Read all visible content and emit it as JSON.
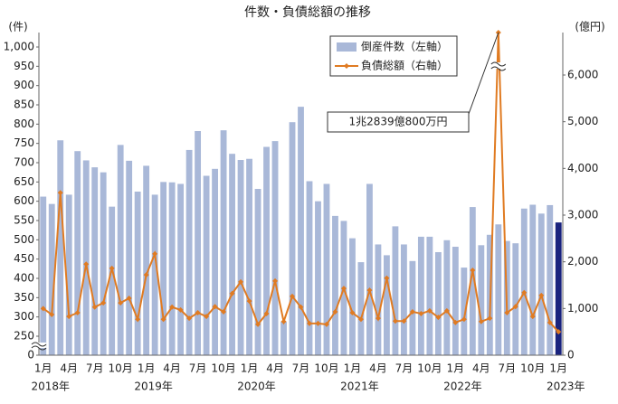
{
  "chart_data": {
    "type": "bar-line",
    "title": "件数・負債総額の推移",
    "y_unit": "(件)",
    "y2_unit": "(億円)",
    "categories": [
      "1月",
      null,
      null,
      "4月",
      null,
      null,
      "7月",
      null,
      null,
      "10月",
      null,
      null,
      "1月",
      null,
      null,
      "4月",
      null,
      null,
      "7月",
      null,
      null,
      "10月",
      null,
      null,
      "1月",
      null,
      null,
      "4月",
      null,
      null,
      "7月",
      null,
      null,
      "10月",
      null,
      null,
      "1月",
      null,
      null,
      "4月",
      null,
      null,
      "7月",
      null,
      null,
      "10月",
      null,
      null,
      "1月",
      null,
      null,
      "4月",
      null,
      null,
      "7月",
      null,
      null,
      "10月",
      null,
      null,
      "1月"
    ],
    "years": [
      "2018年",
      "2019年",
      "2020年",
      "2021年",
      "2022年",
      "2023年"
    ],
    "series": [
      {
        "name": "倒産件数（左軸）",
        "color": "#a9b8d8",
        "highlight_color": "#1a237e",
        "kind": "bar",
        "values": [
          612,
          593,
          758,
          617,
          730,
          706,
          688,
          675,
          586,
          746,
          705,
          625,
          692,
          617,
          650,
          649,
          645,
          733,
          782,
          666,
          684,
          784,
          723,
          707,
          710,
          632,
          741,
          756,
          288,
          805,
          845,
          652,
          600,
          645,
          562,
          549,
          504,
          442,
          645,
          488,
          460,
          535,
          488,
          445,
          508,
          508,
          468,
          499,
          482,
          428,
          585,
          486,
          513,
          540,
          497,
          491,
          581,
          591,
          568,
          590,
          545
        ]
      },
      {
        "name": "負債総額（右軸）",
        "color": "#e07b22",
        "kind": "line",
        "axis": "y2",
        "values": [
          1000,
          870,
          3480,
          830,
          910,
          1950,
          1030,
          1120,
          1860,
          1120,
          1220,
          770,
          1720,
          2170,
          770,
          1030,
          970,
          790,
          910,
          830,
          1040,
          930,
          1320,
          1570,
          1160,
          660,
          890,
          1590,
          720,
          1260,
          1030,
          680,
          680,
          660,
          930,
          1430,
          910,
          770,
          1390,
          790,
          1650,
          730,
          730,
          930,
          890,
          950,
          810,
          950,
          700,
          770,
          1820,
          720,
          790,
          12839,
          910,
          1040,
          1340,
          830,
          1280,
          700,
          500
        ]
      }
    ],
    "annotation": "1兆2839億800万円",
    "ylim": [
      0,
      1000
    ],
    "yticks": [
      0,
      250,
      300,
      350,
      400,
      450,
      500,
      550,
      600,
      650,
      700,
      750,
      800,
      850,
      900,
      950,
      {
        "value": 1000,
        "label": "1,000"
      }
    ],
    "y2lim": [
      0,
      6600
    ],
    "y2ticks": [
      0,
      {
        "value": 1000,
        "label": "1,000"
      },
      {
        "value": 2000,
        "label": "2,000"
      },
      {
        "value": 3000,
        "label": "3,000"
      },
      {
        "value": 4000,
        "label": "4,000"
      },
      {
        "value": 5000,
        "label": "5,000"
      },
      {
        "value": 6000,
        "label": "6,000"
      }
    ]
  }
}
